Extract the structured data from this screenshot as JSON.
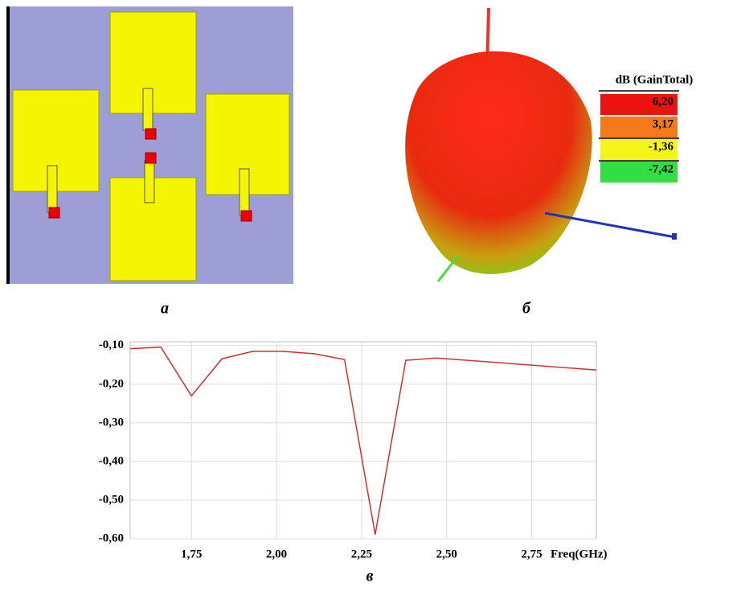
{
  "panel_labels": [
    "а",
    "б",
    "в"
  ],
  "pattern_legend": {
    "title": "dB (GainTotal)",
    "levels": [
      {
        "value": 6.2,
        "label": "6,20",
        "color": "#ee1111"
      },
      {
        "value": 3.17,
        "label": "3,17",
        "color": "#f57a1a"
      },
      {
        "value": -1.36,
        "label": "-1,36",
        "color": "#f5f51a"
      },
      {
        "value": -7.42,
        "label": "-7,42",
        "color": "#33dd44"
      }
    ]
  },
  "chart_data": {
    "type": "line",
    "xlabel": "Freq(GHz)",
    "x": [
      1.57,
      1.66,
      1.75,
      1.84,
      1.93,
      2.02,
      2.11,
      2.2,
      2.29,
      2.38,
      2.47,
      2.94
    ],
    "values": [
      -0.108,
      -0.104,
      -0.23,
      -0.134,
      -0.115,
      -0.115,
      -0.121,
      -0.136,
      -0.589,
      -0.138,
      -0.132,
      -0.163
    ],
    "color": "#cc3333",
    "xlim": [
      1.57,
      2.94
    ],
    "xticks": [
      {
        "value": 1.75,
        "label": "1,75"
      },
      {
        "value": 2.0,
        "label": "2,00"
      },
      {
        "value": 2.25,
        "label": "2,25"
      },
      {
        "value": 2.5,
        "label": "2,50"
      },
      {
        "value": 2.75,
        "label": "2,75"
      }
    ],
    "ylim": [
      -0.6,
      -0.09
    ],
    "yticks": [
      {
        "value": -0.1,
        "label": "-0,10"
      },
      {
        "value": -0.2,
        "label": "-0,20"
      },
      {
        "value": -0.3,
        "label": "-0,30"
      },
      {
        "value": -0.4,
        "label": "-0,40"
      },
      {
        "value": -0.5,
        "label": "-0,50"
      },
      {
        "value": -0.6,
        "label": "-0,60"
      }
    ],
    "grid": true
  }
}
